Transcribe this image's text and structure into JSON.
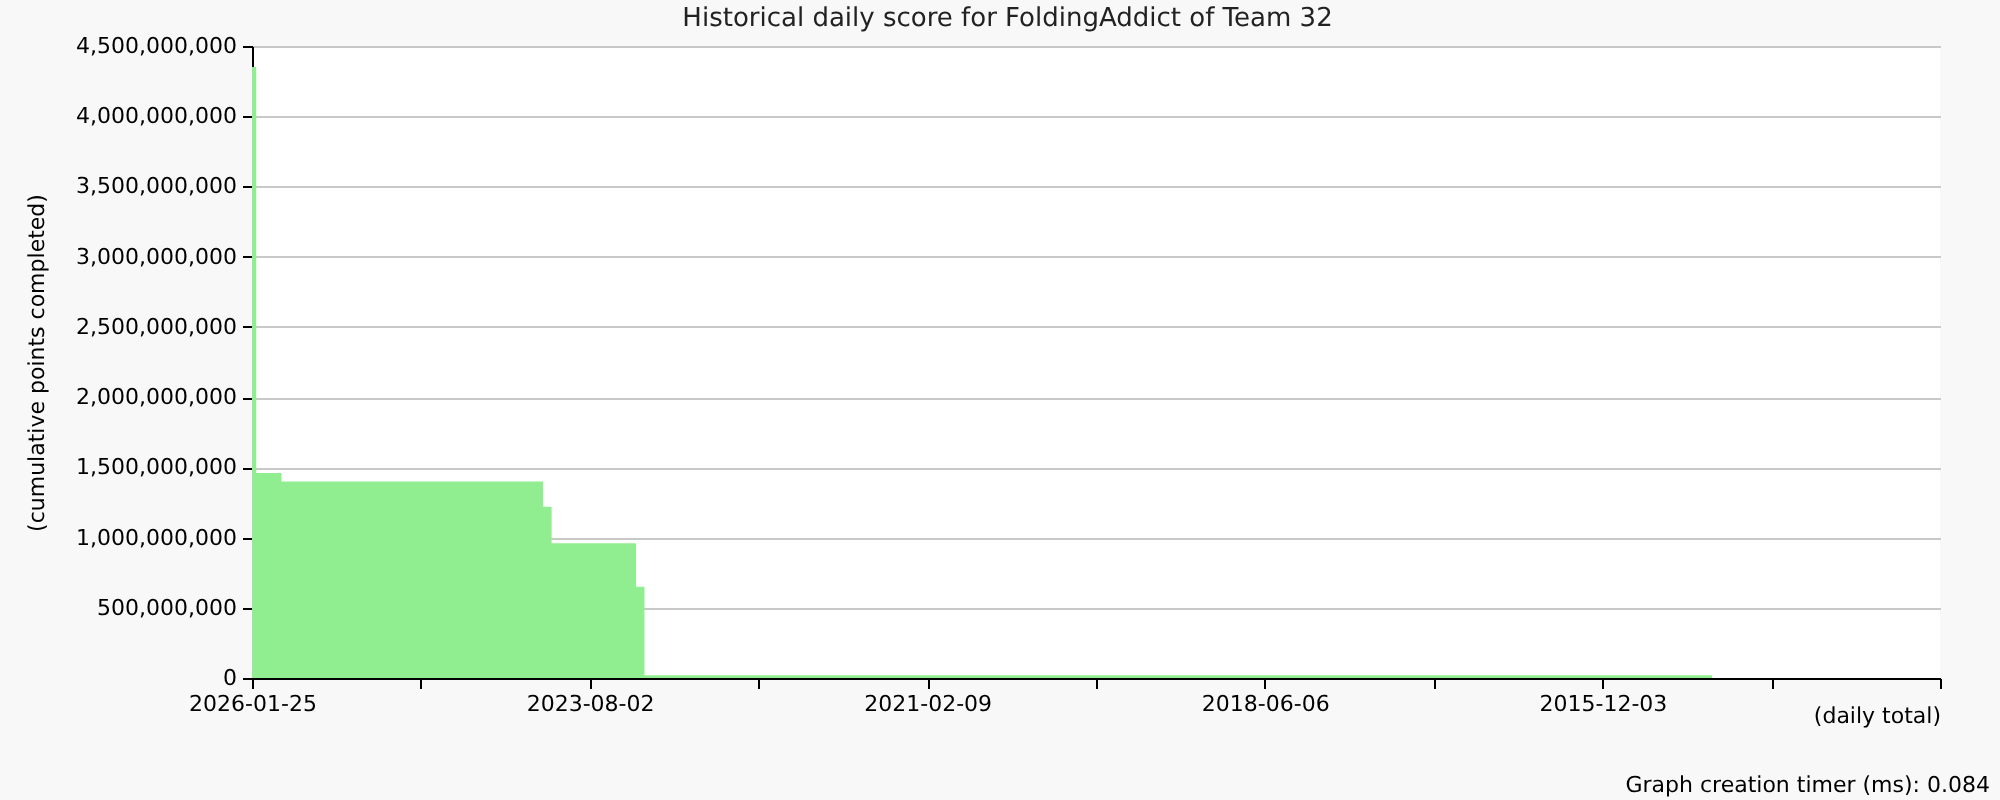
{
  "chart_data": {
    "type": "area",
    "title": "Historical daily score for FoldingAddict of Team 32",
    "xlabel": "(daily total)",
    "ylabel": "(cumulative points completed)",
    "annotations": [
      "Graph creation timer (ms): 0.084"
    ],
    "categories": [
      "2026-01-25",
      null,
      null,
      null,
      null,
      null,
      null,
      null,
      null,
      null,
      null,
      null,
      null,
      null,
      null,
      null,
      null,
      null,
      null,
      null,
      null,
      null,
      null,
      null,
      null,
      null,
      null,
      null,
      null,
      null,
      null,
      null,
      null,
      null,
      null,
      null,
      null,
      null,
      null,
      null,
      "2023-08-02",
      null,
      null,
      null,
      null,
      null,
      null,
      null,
      null,
      null,
      null,
      null,
      null,
      null,
      null,
      null,
      null,
      null,
      null,
      null,
      null,
      null,
      null,
      null,
      null,
      null,
      null,
      null,
      null,
      null,
      null,
      null,
      null,
      null,
      null,
      null,
      null,
      null,
      null,
      null,
      "2021-02-09",
      null,
      null,
      null,
      null,
      null,
      null,
      null,
      null,
      null,
      null,
      null,
      null,
      null,
      null,
      null,
      null,
      null,
      null,
      null,
      null,
      null,
      null,
      null,
      null,
      null,
      null,
      null,
      null,
      null,
      null,
      null,
      null,
      null,
      null,
      null,
      null,
      null,
      null,
      null,
      "2018-06-06",
      null,
      null,
      null,
      null,
      null,
      null,
      null,
      null,
      null,
      null,
      null,
      null,
      null,
      null,
      null,
      null,
      null,
      null,
      null,
      null,
      null,
      null,
      null,
      null,
      null,
      null,
      null,
      null,
      null,
      null,
      null,
      null,
      null,
      null,
      null,
      null,
      null,
      null,
      null,
      "2015-12-03",
      null,
      null,
      null,
      null,
      null,
      null,
      null,
      null,
      null,
      null,
      null,
      null,
      null,
      null,
      null,
      null,
      null,
      null,
      null,
      null,
      null,
      null,
      null,
      null,
      null,
      null,
      null,
      null,
      null,
      null,
      null,
      null,
      null,
      null,
      null,
      null,
      null,
      null,
      null,
      null
    ],
    "series": [
      {
        "color": "#90ee90",
        "values": [
          4350000000,
          1460000000,
          1460000000,
          1460000000,
          1400000000,
          1400000000,
          1400000000,
          1400000000,
          1400000000,
          1400000000,
          1400000000,
          1400000000,
          1400000000,
          1400000000,
          1400000000,
          1400000000,
          1400000000,
          1400000000,
          1400000000,
          1400000000,
          1400000000,
          1400000000,
          1400000000,
          1400000000,
          1400000000,
          1400000000,
          1400000000,
          1400000000,
          1400000000,
          1400000000,
          1400000000,
          1400000000,
          1400000000,
          1400000000,
          1400000000,
          1220000000,
          960000000,
          960000000,
          960000000,
          960000000,
          960000000,
          960000000,
          960000000,
          960000000,
          960000000,
          960000000,
          650000000,
          20000000,
          20000000,
          20000000,
          20000000,
          20000000,
          20000000,
          20000000,
          20000000,
          20000000,
          20000000,
          20000000,
          20000000,
          20000000,
          20000000,
          20000000,
          20000000,
          20000000,
          20000000,
          20000000,
          20000000,
          20000000,
          20000000,
          20000000,
          20000000,
          20000000,
          20000000,
          20000000,
          20000000,
          20000000,
          20000000,
          20000000,
          20000000,
          20000000,
          20000000,
          20000000,
          20000000,
          20000000,
          20000000,
          20000000,
          20000000,
          20000000,
          20000000,
          20000000,
          20000000,
          20000000,
          20000000,
          20000000,
          20000000,
          20000000,
          20000000,
          20000000,
          20000000,
          20000000,
          20000000,
          20000000,
          20000000,
          20000000,
          20000000,
          20000000,
          20000000,
          20000000,
          20000000,
          20000000,
          20000000,
          20000000,
          20000000,
          20000000,
          20000000,
          20000000,
          20000000,
          20000000,
          20000000,
          20000000,
          20000000,
          20000000,
          20000000,
          20000000,
          20000000,
          20000000,
          20000000,
          20000000,
          20000000,
          20000000,
          20000000,
          20000000,
          20000000,
          20000000,
          20000000,
          20000000,
          20000000,
          20000000,
          20000000,
          20000000,
          20000000,
          20000000,
          20000000,
          20000000,
          20000000,
          20000000,
          20000000,
          20000000,
          20000000,
          20000000,
          20000000,
          20000000,
          20000000,
          20000000,
          20000000,
          20000000,
          20000000,
          20000000,
          20000000,
          20000000,
          20000000,
          20000000,
          20000000,
          20000000,
          20000000,
          20000000,
          20000000,
          20000000,
          20000000,
          20000000,
          20000000,
          20000000,
          20000000,
          20000000,
          null,
          null,
          null,
          null,
          null,
          null,
          null,
          null,
          null,
          null,
          null,
          null,
          null,
          null,
          null,
          null,
          null,
          null,
          null,
          null,
          null,
          null,
          null,
          null,
          null,
          null,
          null
        ]
      }
    ],
    "ylim": [
      0,
      4500000000
    ],
    "yticks": [
      0,
      {
        "value": 500000000,
        "label": "500,000,000"
      },
      {
        "value": 1000000000,
        "label": "1,000,000,000"
      },
      {
        "value": 1500000000,
        "label": "1,500,000,000"
      },
      {
        "value": 2000000000,
        "label": "2,000,000,000"
      },
      {
        "value": 2500000000,
        "label": "2,500,000,000"
      },
      {
        "value": 3000000000,
        "label": "3,000,000,000"
      },
      {
        "value": 3500000000,
        "label": "3,500,000,000"
      },
      {
        "value": 4000000000,
        "label": "4,000,000,000"
      },
      {
        "value": 4500000000,
        "label": "4,500,000,000"
      }
    ],
    "grid": "y"
  }
}
